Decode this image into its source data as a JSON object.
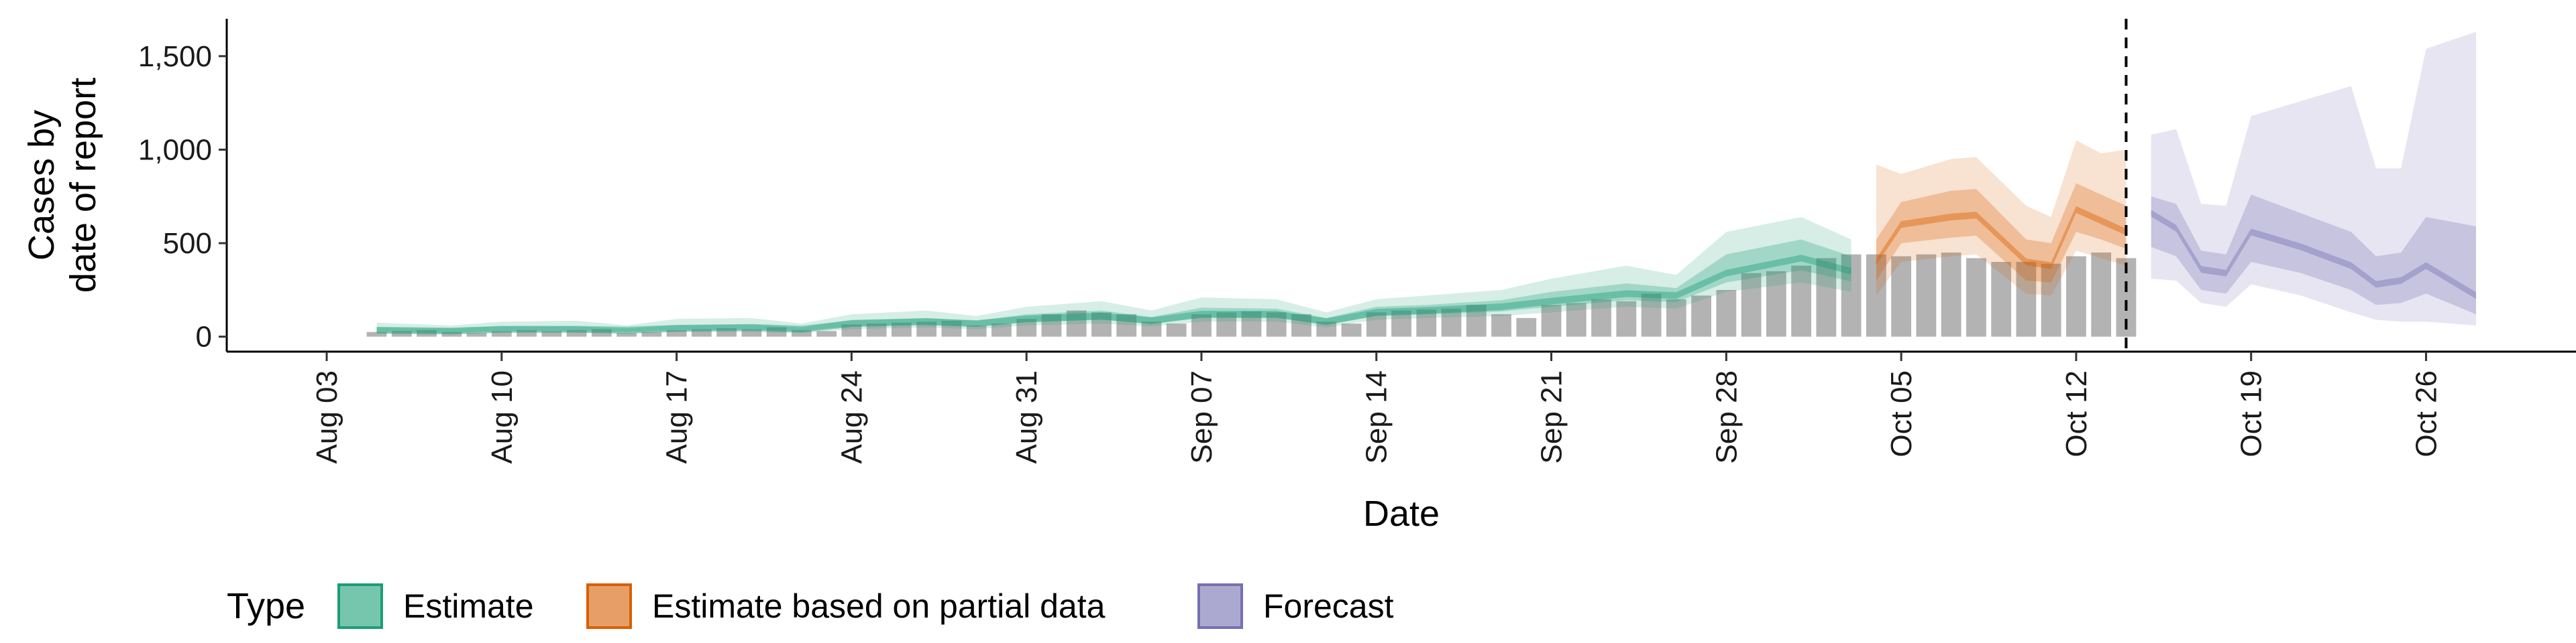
{
  "chart_data": {
    "type": "area",
    "xlabel": "Date",
    "ylabel": [
      "Cases by",
      "date of report"
    ],
    "ylim": [
      -80,
      1700
    ],
    "xlim": [
      "2020-07-30",
      "2020-11-01"
    ],
    "yticks": [
      0,
      500,
      1000,
      1500
    ],
    "ytick_labels": [
      "0",
      "500",
      "1,000",
      "1,500"
    ],
    "xticks": [
      "2020-08-03",
      "2020-08-10",
      "2020-08-17",
      "2020-08-24",
      "2020-08-31",
      "2020-09-07",
      "2020-09-14",
      "2020-09-21",
      "2020-09-28",
      "2020-10-05",
      "2020-10-12",
      "2020-10-19",
      "2020-10-26"
    ],
    "xtick_labels": [
      "Aug 03",
      "Aug 10",
      "Aug 17",
      "Aug 24",
      "Aug 31",
      "Sep 07",
      "Sep 14",
      "Sep 21",
      "Sep 28",
      "Oct 05",
      "Oct 12",
      "Oct 19",
      "Oct 26"
    ],
    "grid": false,
    "legend_position": "bottom",
    "legend_title": "Type",
    "vline": "2020-10-14",
    "colors": {
      "bars": "#b3b3b3",
      "Estimate": "#1b9e77",
      "Estimate based on partial data": "#d95f02",
      "Forecast": "#7570b3"
    },
    "reported_cases": {
      "dates": [
        "2020-08-05",
        "2020-08-06",
        "2020-08-07",
        "2020-08-08",
        "2020-08-09",
        "2020-08-10",
        "2020-08-11",
        "2020-08-12",
        "2020-08-13",
        "2020-08-14",
        "2020-08-15",
        "2020-08-16",
        "2020-08-17",
        "2020-08-18",
        "2020-08-19",
        "2020-08-20",
        "2020-08-21",
        "2020-08-22",
        "2020-08-23",
        "2020-08-24",
        "2020-08-25",
        "2020-08-26",
        "2020-08-27",
        "2020-08-28",
        "2020-08-29",
        "2020-08-30",
        "2020-08-31",
        "2020-09-01",
        "2020-09-02",
        "2020-09-03",
        "2020-09-04",
        "2020-09-05",
        "2020-09-06",
        "2020-09-07",
        "2020-09-08",
        "2020-09-09",
        "2020-09-10",
        "2020-09-11",
        "2020-09-12",
        "2020-09-13",
        "2020-09-14",
        "2020-09-15",
        "2020-09-16",
        "2020-09-17",
        "2020-09-18",
        "2020-09-19",
        "2020-09-20",
        "2020-09-21",
        "2020-09-22",
        "2020-09-23",
        "2020-09-24",
        "2020-09-25",
        "2020-09-26",
        "2020-09-27",
        "2020-09-28",
        "2020-09-29",
        "2020-09-30",
        "2020-10-01",
        "2020-10-02",
        "2020-10-03",
        "2020-10-04",
        "2020-10-05",
        "2020-10-06",
        "2020-10-07",
        "2020-10-08",
        "2020-10-09",
        "2020-10-10",
        "2020-10-11",
        "2020-10-12",
        "2020-10-13",
        "2020-10-14"
      ],
      "values": [
        25,
        30,
        35,
        25,
        20,
        30,
        35,
        30,
        35,
        40,
        20,
        25,
        35,
        40,
        45,
        40,
        50,
        35,
        30,
        65,
        70,
        75,
        80,
        85,
        60,
        70,
        95,
        120,
        140,
        130,
        120,
        80,
        70,
        120,
        130,
        135,
        130,
        120,
        80,
        70,
        130,
        140,
        145,
        150,
        170,
        120,
        100,
        170,
        180,
        200,
        190,
        230,
        200,
        220,
        250,
        340,
        350,
        380,
        420,
        440,
        440,
        430,
        440,
        450,
        420,
        400,
        400,
        390,
        430,
        450,
        420
      ]
    },
    "series": [
      {
        "name": "Estimate",
        "x": [
          "2020-08-05",
          "2020-08-08",
          "2020-08-10",
          "2020-08-13",
          "2020-08-15",
          "2020-08-17",
          "2020-08-20",
          "2020-08-22",
          "2020-08-24",
          "2020-08-27",
          "2020-08-29",
          "2020-08-31",
          "2020-09-03",
          "2020-09-05",
          "2020-09-07",
          "2020-09-10",
          "2020-09-12",
          "2020-09-14",
          "2020-09-16",
          "2020-09-19",
          "2020-09-21",
          "2020-09-24",
          "2020-09-26",
          "2020-09-28",
          "2020-10-01",
          "2020-10-03"
        ],
        "median": [
          35,
          30,
          40,
          40,
          35,
          45,
          50,
          40,
          70,
          80,
          70,
          95,
          110,
          85,
          120,
          120,
          80,
          130,
          140,
          160,
          190,
          230,
          220,
          340,
          420,
          350
        ],
        "lower_90": [
          15,
          15,
          20,
          20,
          15,
          25,
          25,
          20,
          40,
          50,
          40,
          60,
          70,
          55,
          80,
          80,
          50,
          90,
          100,
          110,
          130,
          160,
          150,
          240,
          290,
          240
        ],
        "upper_90": [
          75,
          60,
          80,
          85,
          60,
          95,
          100,
          70,
          120,
          140,
          110,
          160,
          190,
          140,
          210,
          200,
          130,
          200,
          220,
          250,
          310,
          380,
          330,
          560,
          640,
          520
        ],
        "lower_50": [
          25,
          20,
          30,
          30,
          25,
          35,
          38,
          30,
          55,
          65,
          55,
          78,
          90,
          70,
          100,
          100,
          65,
          110,
          120,
          135,
          160,
          195,
          185,
          290,
          355,
          295
        ],
        "upper_50": [
          50,
          45,
          55,
          55,
          45,
          62,
          65,
          50,
          90,
          100,
          85,
          120,
          140,
          105,
          155,
          150,
          100,
          160,
          170,
          195,
          240,
          285,
          260,
          440,
          520,
          430
        ]
      },
      {
        "name": "Estimate based on partial data",
        "x": [
          "2020-10-04",
          "2020-10-05",
          "2020-10-07",
          "2020-10-08",
          "2020-10-10",
          "2020-10-11",
          "2020-10-12",
          "2020-10-13",
          "2020-10-14"
        ],
        "median": [
          400,
          600,
          640,
          650,
          400,
          380,
          680,
          620,
          560
        ],
        "lower_90": [
          220,
          400,
          430,
          440,
          230,
          220,
          460,
          420,
          380
        ],
        "upper_90": [
          920,
          870,
          950,
          960,
          700,
          640,
          1050,
          980,
          1000
        ],
        "lower_50": [
          300,
          500,
          530,
          540,
          300,
          290,
          560,
          520,
          470
        ],
        "upper_50": [
          520,
          720,
          780,
          790,
          520,
          500,
          820,
          760,
          700
        ]
      },
      {
        "name": "Forecast",
        "x": [
          "2020-10-15",
          "2020-10-16",
          "2020-10-17",
          "2020-10-18",
          "2020-10-19",
          "2020-10-21",
          "2020-10-23",
          "2020-10-24",
          "2020-10-25",
          "2020-10-26",
          "2020-10-28"
        ],
        "median": [
          660,
          580,
          360,
          340,
          560,
          480,
          380,
          280,
          300,
          380,
          220
        ],
        "lower_90": [
          310,
          300,
          180,
          160,
          280,
          220,
          130,
          90,
          80,
          80,
          60
        ],
        "upper_90": [
          1080,
          1110,
          710,
          700,
          1180,
          1260,
          1340,
          900,
          900,
          1540,
          1630
        ],
        "lower_50": [
          480,
          430,
          250,
          230,
          400,
          340,
          250,
          170,
          180,
          230,
          120
        ],
        "upper_50": [
          750,
          710,
          460,
          440,
          760,
          660,
          560,
          430,
          450,
          640,
          590
        ]
      }
    ]
  }
}
